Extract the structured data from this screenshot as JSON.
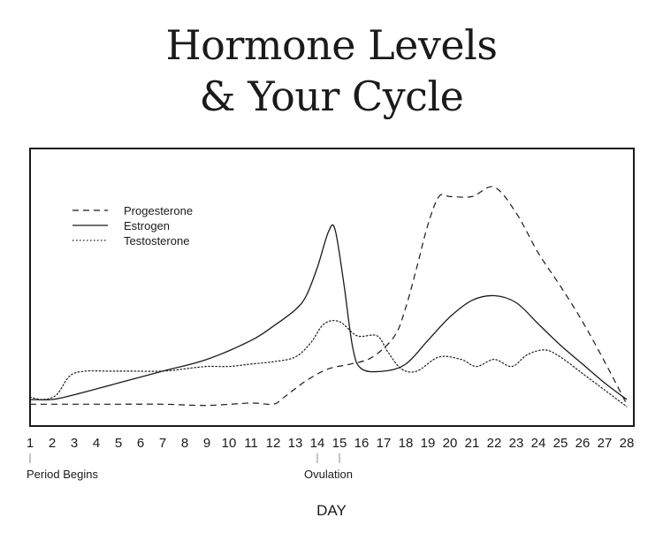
{
  "title_line1": "Hormone Levels",
  "title_line2": "& Your Cycle",
  "colors": {
    "line": "#1a1a1a",
    "background": "#ffffff"
  },
  "chart_data": {
    "type": "line",
    "title": "Hormone Levels & Your Cycle",
    "xlabel": "DAY",
    "ylabel": "",
    "xlim": [
      1,
      28
    ],
    "ylim": [
      0,
      1
    ],
    "y_axis_labels": false,
    "grid": false,
    "legend_position": "top-left",
    "x_ticks": [
      1,
      2,
      3,
      4,
      5,
      6,
      7,
      8,
      9,
      10,
      11,
      12,
      13,
      14,
      15,
      16,
      17,
      18,
      19,
      20,
      21,
      22,
      23,
      24,
      25,
      26,
      27,
      28
    ],
    "annotations": [
      {
        "label": "Period Begins",
        "days": [
          1
        ]
      },
      {
        "label": "Ovulation",
        "days": [
          14,
          15
        ]
      }
    ],
    "series": [
      {
        "name": "Progesterone",
        "style": "dashed",
        "points": [
          [
            1,
            0.04
          ],
          [
            3,
            0.04
          ],
          [
            5,
            0.04
          ],
          [
            7,
            0.04
          ],
          [
            9,
            0.035
          ],
          [
            11,
            0.045
          ],
          [
            12,
            0.04
          ],
          [
            12.5,
            0.07
          ],
          [
            13.5,
            0.14
          ],
          [
            14.5,
            0.19
          ],
          [
            15.5,
            0.21
          ],
          [
            16.5,
            0.24
          ],
          [
            17.5,
            0.33
          ],
          [
            18,
            0.45
          ],
          [
            18.5,
            0.62
          ],
          [
            19,
            0.8
          ],
          [
            19.5,
            0.92
          ],
          [
            20,
            0.92
          ],
          [
            21,
            0.92
          ],
          [
            22,
            0.96
          ],
          [
            23,
            0.85
          ],
          [
            24,
            0.68
          ],
          [
            25,
            0.54
          ],
          [
            26,
            0.39
          ],
          [
            27,
            0.22
          ],
          [
            28,
            0.04
          ]
        ]
      },
      {
        "name": "Estrogen",
        "style": "solid",
        "points": [
          [
            1,
            0.06
          ],
          [
            2,
            0.06
          ],
          [
            3,
            0.08
          ],
          [
            5,
            0.13
          ],
          [
            7,
            0.18
          ],
          [
            9,
            0.23
          ],
          [
            11,
            0.31
          ],
          [
            12,
            0.37
          ],
          [
            13,
            0.44
          ],
          [
            13.5,
            0.5
          ],
          [
            14,
            0.62
          ],
          [
            14.5,
            0.77
          ],
          [
            14.8,
            0.78
          ],
          [
            15.2,
            0.55
          ],
          [
            15.6,
            0.28
          ],
          [
            16,
            0.19
          ],
          [
            17,
            0.18
          ],
          [
            18,
            0.21
          ],
          [
            19,
            0.31
          ],
          [
            20,
            0.41
          ],
          [
            21,
            0.48
          ],
          [
            22,
            0.5
          ],
          [
            23,
            0.47
          ],
          [
            24,
            0.38
          ],
          [
            25,
            0.29
          ],
          [
            26,
            0.21
          ],
          [
            27,
            0.13
          ],
          [
            28,
            0.06
          ]
        ]
      },
      {
        "name": "Testosterone",
        "style": "dotted",
        "points": [
          [
            1,
            0.07
          ],
          [
            1.6,
            0.06
          ],
          [
            2.2,
            0.08
          ],
          [
            2.8,
            0.16
          ],
          [
            3.5,
            0.18
          ],
          [
            4.5,
            0.18
          ],
          [
            5.5,
            0.18
          ],
          [
            7,
            0.18
          ],
          [
            8,
            0.19
          ],
          [
            9,
            0.2
          ],
          [
            10,
            0.2
          ],
          [
            11,
            0.21
          ],
          [
            12,
            0.22
          ],
          [
            13,
            0.24
          ],
          [
            13.7,
            0.3
          ],
          [
            14.3,
            0.38
          ],
          [
            15,
            0.39
          ],
          [
            15.8,
            0.33
          ],
          [
            16.7,
            0.33
          ],
          [
            17.2,
            0.26
          ],
          [
            17.8,
            0.19
          ],
          [
            18.5,
            0.18
          ],
          [
            19.5,
            0.24
          ],
          [
            20.5,
            0.23
          ],
          [
            21.2,
            0.2
          ],
          [
            22,
            0.23
          ],
          [
            22.8,
            0.2
          ],
          [
            23.5,
            0.25
          ],
          [
            24.3,
            0.27
          ],
          [
            25,
            0.24
          ],
          [
            26,
            0.17
          ],
          [
            27,
            0.1
          ],
          [
            28,
            0.03
          ]
        ]
      }
    ]
  }
}
